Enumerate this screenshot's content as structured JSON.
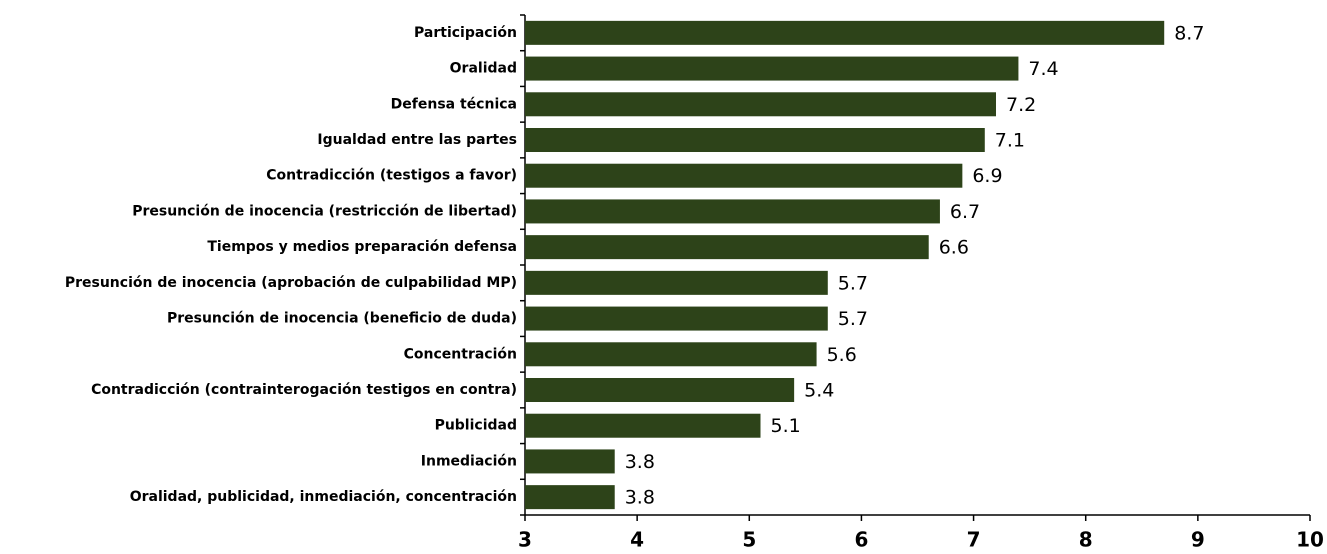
{
  "chart_data": {
    "type": "bar",
    "orientation": "horizontal",
    "categories": [
      "Participación",
      "Oralidad",
      "Defensa técnica",
      "Igualdad entre las partes",
      "Contradicción (testigos a favor)",
      "Presunción de inocencia (restricción de libertad)",
      "Tiempos y medios preparación defensa",
      "Presunción de inocencia (aprobación de culpabilidad MP)",
      "Presunción de inocencia (beneficio de duda)",
      "Concentración",
      "Contradicción (contrainterogación testigos en contra)",
      "Publicidad",
      "Inmediación",
      "Oralidad, publicidad, inmediación, concentración"
    ],
    "values": [
      8.7,
      7.4,
      7.2,
      7.1,
      6.9,
      6.7,
      6.6,
      5.7,
      5.7,
      5.6,
      5.4,
      5.1,
      3.8,
      3.8
    ],
    "color": "#2d4319",
    "xlim": [
      3,
      10
    ],
    "xticks": [
      3,
      4,
      5,
      6,
      7,
      8,
      9,
      10
    ],
    "grid": false
  }
}
